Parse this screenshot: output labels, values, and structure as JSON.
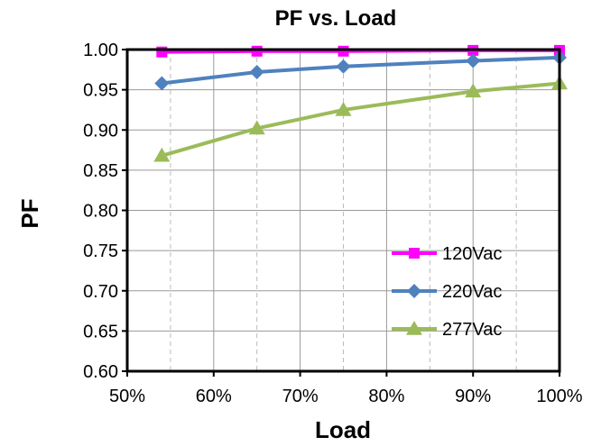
{
  "chart_data": {
    "type": "line",
    "title": "PF vs. Load",
    "xlabel": "Load",
    "ylabel": "PF",
    "xlim": [
      50,
      100
    ],
    "ylim": [
      0.6,
      1.0
    ],
    "x_ticks": [
      "50%",
      "60%",
      "70%",
      "80%",
      "90%",
      "100%"
    ],
    "y_ticks": [
      "0.60",
      "0.65",
      "0.70",
      "0.75",
      "0.80",
      "0.85",
      "0.90",
      "0.95",
      "1.00"
    ],
    "grid": true,
    "legend_position": "bottom-right",
    "x": [
      54,
      65,
      75,
      90,
      100
    ],
    "series": [
      {
        "name": "120Vac",
        "color": "#ff00ff",
        "marker": "square",
        "values": [
          0.997,
          0.998,
          0.998,
          0.999,
          0.999
        ]
      },
      {
        "name": "220Vac",
        "color": "#4f81bd",
        "marker": "diamond",
        "values": [
          0.958,
          0.972,
          0.979,
          0.986,
          0.99
        ]
      },
      {
        "name": "277Vac",
        "color": "#9bbb59",
        "marker": "triangle",
        "values": [
          0.868,
          0.902,
          0.925,
          0.948,
          0.958
        ]
      }
    ]
  }
}
